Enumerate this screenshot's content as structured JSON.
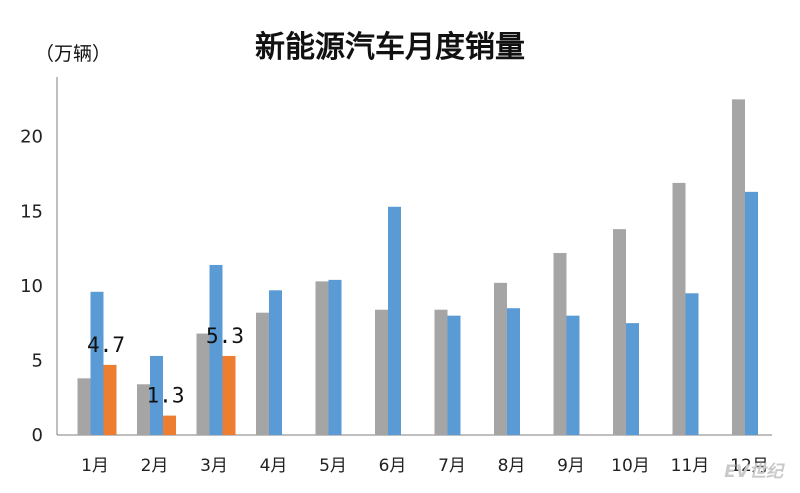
{
  "chart_data": {
    "type": "bar",
    "title": "新能源汽车月度销量",
    "unit": "（万辆）",
    "categories": [
      "1月",
      "2月",
      "3月",
      "4月",
      "5月",
      "6月",
      "7月",
      "8月",
      "9月",
      "10月",
      "11月",
      "12月"
    ],
    "series": [
      {
        "color": "#a5a5a5",
        "values": [
          3.8,
          3.4,
          6.8,
          8.2,
          10.3,
          8.4,
          8.4,
          10.2,
          12.2,
          13.8,
          16.9,
          22.5
        ]
      },
      {
        "color": "#5b9bd5",
        "values": [
          9.6,
          5.3,
          11.4,
          9.7,
          10.4,
          15.3,
          8.0,
          8.5,
          8.0,
          7.5,
          9.5,
          16.3
        ]
      },
      {
        "color": "#ed7d31",
        "values": [
          4.7,
          1.3,
          5.3,
          null,
          null,
          null,
          null,
          null,
          null,
          null,
          null,
          null
        ],
        "data_labels": [
          "4.7",
          "1.3",
          "5.3"
        ]
      }
    ],
    "yticks": [
      "0",
      "5",
      "10",
      "15",
      "20"
    ],
    "ylim": [
      0,
      24
    ],
    "grid": false,
    "legend": "none"
  },
  "watermark": "EV世纪"
}
